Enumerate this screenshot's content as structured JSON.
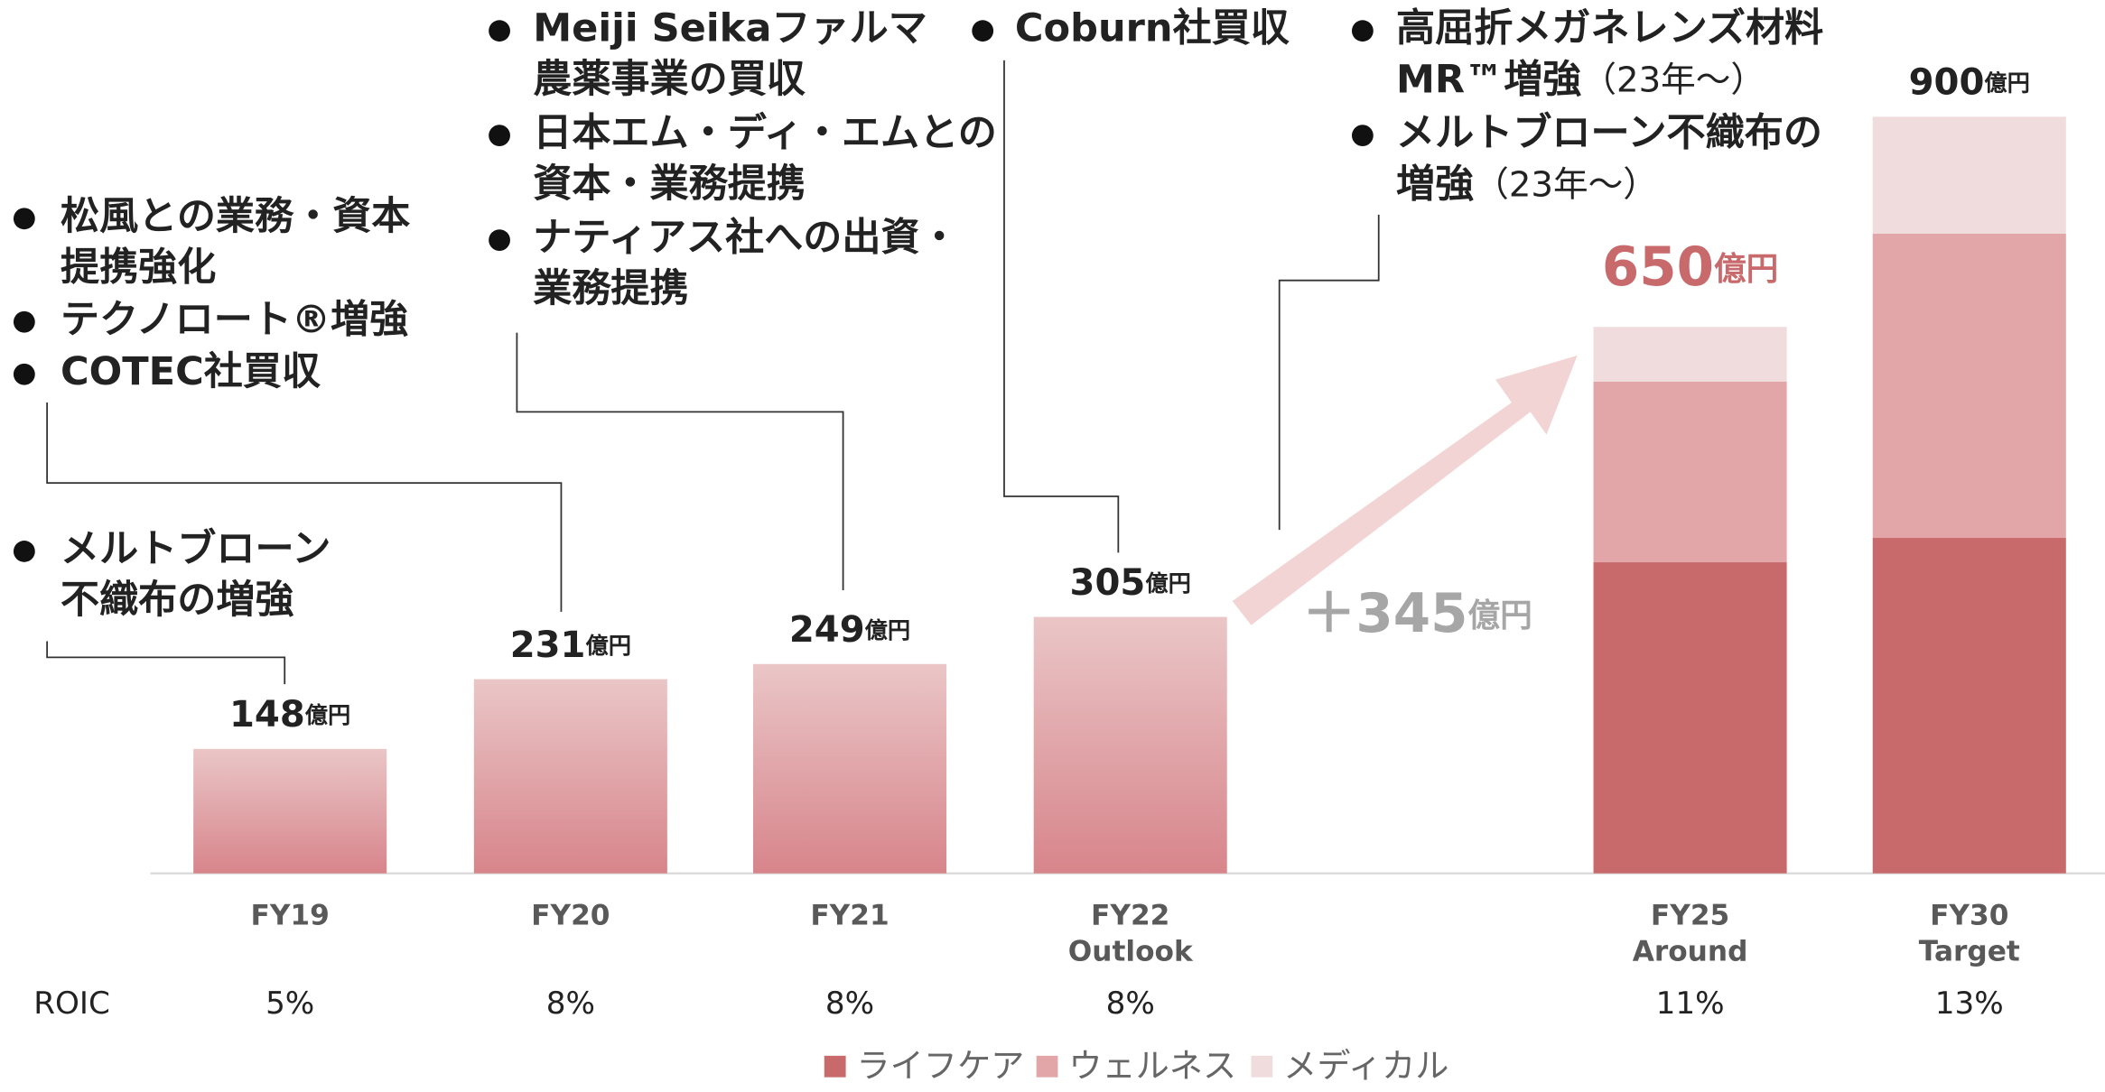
{
  "chart_data": {
    "type": "bar",
    "unit": "億円",
    "categories": [
      [
        "FY19"
      ],
      [
        "FY20"
      ],
      [
        "FY21"
      ],
      [
        "FY22",
        "Outlook"
      ],
      [
        "FY25",
        "Around"
      ],
      [
        "FY30",
        "Target"
      ]
    ],
    "totals": [
      148,
      231,
      249,
      305,
      650,
      900
    ],
    "series": [
      {
        "name": "ライフケア",
        "color": "#c8696b",
        "values": [
          null,
          null,
          null,
          null,
          370,
          399
        ]
      },
      {
        "name": "ウェルネス",
        "color": "#e2a5a8",
        "values": [
          null,
          null,
          null,
          null,
          215,
          362
        ]
      },
      {
        "name": "メディカル",
        "color": "#f0dcdd",
        "values": [
          null,
          null,
          null,
          null,
          65,
          139
        ]
      }
    ],
    "bar_gradient": [
      "#eac6c7",
      "#d7858b"
    ],
    "growth_label": "＋345",
    "roic": {
      "label": "ROIC",
      "values": [
        5,
        8,
        8,
        8,
        11,
        13
      ],
      "value_labels": [
        "5%",
        "8%",
        "8%",
        "8%",
        "11%",
        "13%"
      ]
    },
    "annotations": [
      [
        [
          "メルトブローン",
          "不織布の増強"
        ]
      ],
      [
        [
          "松風との業務・資本",
          "提携強化"
        ],
        [
          "テクノロート®増強"
        ],
        [
          "COTEC社買収"
        ]
      ],
      [
        [
          "Meiji Seikaファルマ",
          "農薬事業の買収"
        ],
        [
          "日本エム・ディ・エムとの",
          "資本・業務提携"
        ],
        [
          "ナティアス社への出資・",
          "業務提携"
        ]
      ],
      [
        [
          "Coburn社買収"
        ]
      ],
      [
        [
          "高屈折メガネレンズ材料",
          {
            "text": "MR™増強",
            "note": "（23年〜）"
          }
        ],
        [
          "メルトブローン不織布の",
          {
            "text": "増強",
            "note": "（23年〜）"
          }
        ]
      ]
    ]
  }
}
